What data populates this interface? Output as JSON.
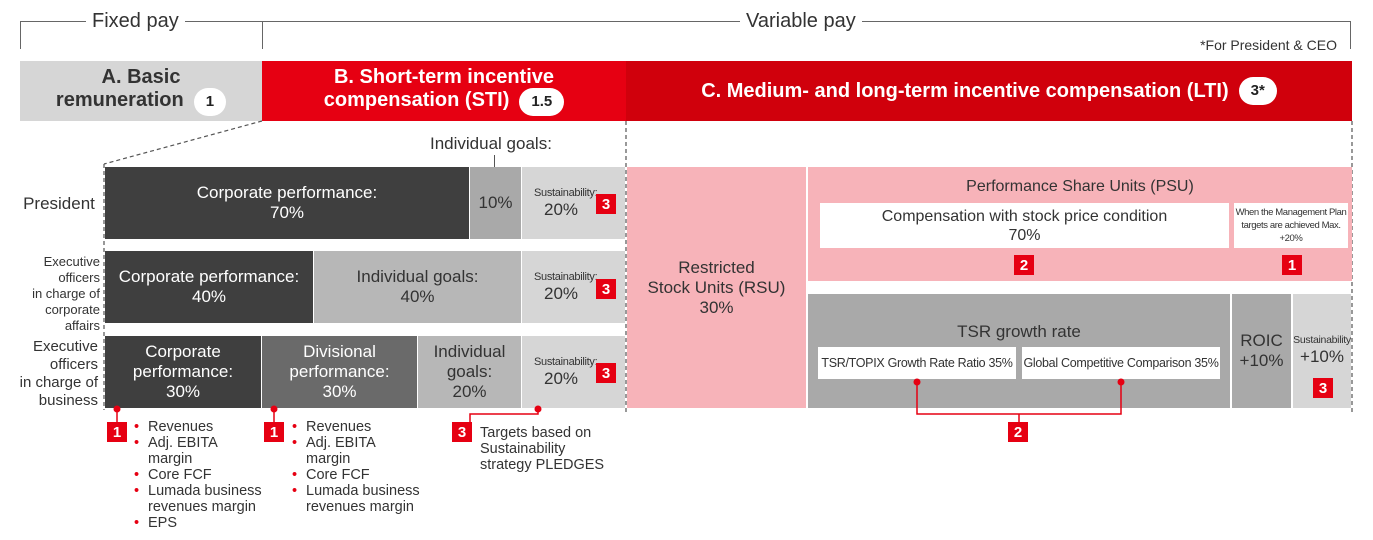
{
  "headers": {
    "fixed_pay": "Fixed pay",
    "variable_pay": "Variable pay",
    "footnote": "*For President & CEO"
  },
  "columns": {
    "a": {
      "label_line1": "A. Basic",
      "label_line2": "remuneration",
      "ratio": "1"
    },
    "b": {
      "label_line1": "B. Short-term incentive",
      "label_line2": "compensation (STI)",
      "ratio": "1.5"
    },
    "c": {
      "label": "C. Medium- and long-term incentive compensation (LTI)",
      "ratio": "3*"
    }
  },
  "rows": {
    "president": "President",
    "corp_affairs": [
      "Executive",
      "officers",
      "in charge of",
      "corporate affairs"
    ],
    "business": [
      "Executive",
      "officers",
      "in charge of",
      "business"
    ]
  },
  "sti": {
    "individual_goals_label": "Individual goals:",
    "president": {
      "corporate": "Corporate performance:",
      "corporate_pct": "70%",
      "individual_pct": "10%",
      "sustainability": "Sustainability:",
      "sustainability_pct": "20%"
    },
    "corp_affairs": {
      "corporate": "Corporate performance:",
      "corporate_pct": "40%",
      "individual": "Individual goals:",
      "individual_pct": "40%",
      "sustainability": "Sustainability:",
      "sustainability_pct": "20%"
    },
    "business": {
      "corporate_l1": "Corporate",
      "corporate_l2": "performance:",
      "corporate_pct": "30%",
      "divisional_l1": "Divisional",
      "divisional_l2": "performance:",
      "divisional_pct": "30%",
      "individual_l1": "Individual",
      "individual_l2": "goals:",
      "individual_pct": "20%",
      "sustainability": "Sustainability:",
      "sustainability_pct": "20%"
    }
  },
  "lti": {
    "rsu_l1": "Restricted",
    "rsu_l2": "Stock Units (RSU)",
    "rsu_pct": "30%",
    "psu_title": "Performance Share Units (PSU)",
    "stock_price_l1": "Compensation with stock price condition",
    "stock_price_pct": "70%",
    "mgmt_plan_l1": "When the Management Plan",
    "mgmt_plan_l2": "targets are achieved Max. +20%",
    "tsr_title": "TSR growth rate",
    "tsr_topix": "TSR/TOPIX Growth Rate Ratio 35%",
    "global_comp": "Global Competitive Comparison 35%",
    "roic_l1": "ROIC",
    "roic_l2": "+10%",
    "sust_l1": "Sustainability",
    "sust_l2": "+10%"
  },
  "badges": {
    "one": "1",
    "two": "2",
    "three": "3"
  },
  "notes": {
    "corporate_list": [
      {
        "bullet": true,
        "text": "Revenues"
      },
      {
        "bullet": true,
        "text": "Adj. EBITA"
      },
      {
        "bullet": false,
        "text": "margin"
      },
      {
        "bullet": true,
        "text": "Core FCF"
      },
      {
        "bullet": true,
        "text": "Lumada business"
      },
      {
        "bullet": false,
        "text": "revenues margin"
      },
      {
        "bullet": true,
        "text": "EPS"
      }
    ],
    "divisional_list": [
      {
        "bullet": true,
        "text": "Revenues"
      },
      {
        "bullet": true,
        "text": "Adj. EBITA"
      },
      {
        "bullet": false,
        "text": "margin"
      },
      {
        "bullet": true,
        "text": "Core FCF"
      },
      {
        "bullet": true,
        "text": "Lumada business"
      },
      {
        "bullet": false,
        "text": "revenues margin"
      }
    ],
    "targets_l1": "Targets based on",
    "targets_l2": "Sustainability",
    "targets_l3": "strategy PLEDGES"
  },
  "colors": {
    "red": "#e60012",
    "dark_red": "#d0000c",
    "pink": "#f7b3b9"
  }
}
